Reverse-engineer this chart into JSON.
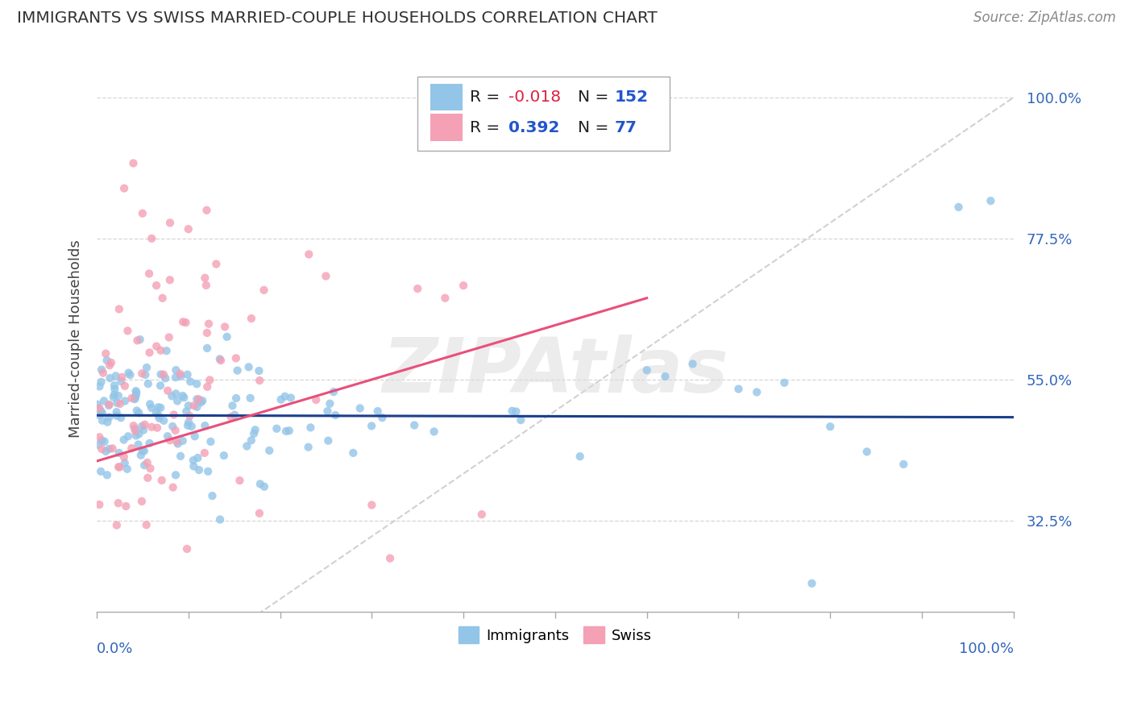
{
  "title": "IMMIGRANTS VS SWISS MARRIED-COUPLE HOUSEHOLDS CORRELATION CHART",
  "source": "Source: ZipAtlas.com",
  "ylabel": "Married-couple Households",
  "legend_labels": [
    "Immigrants",
    "Swiss"
  ],
  "series": [
    {
      "name": "Immigrants",
      "color": "#92C5E8",
      "R": -0.018,
      "N": 152,
      "line_color": "#1B3F8B",
      "trend_x0": 0.0,
      "trend_y0": 0.493,
      "trend_x1": 1.0,
      "trend_y1": 0.49
    },
    {
      "name": "Swiss",
      "color": "#F4A0B5",
      "R": 0.392,
      "N": 77,
      "line_color": "#E8507A",
      "trend_x0": 0.0,
      "trend_y0": 0.42,
      "trend_x1": 0.6,
      "trend_y1": 0.68
    }
  ],
  "watermark": "ZIPAtlas",
  "diag_line_color": "#cccccc",
  "xlim": [
    0.0,
    1.0
  ],
  "ylim": [
    0.18,
    1.05
  ],
  "ytick_vals": [
    0.325,
    0.55,
    0.775,
    1.0
  ],
  "ytick_labels": [
    "32.5%",
    "55.0%",
    "77.5%",
    "100.0%"
  ]
}
